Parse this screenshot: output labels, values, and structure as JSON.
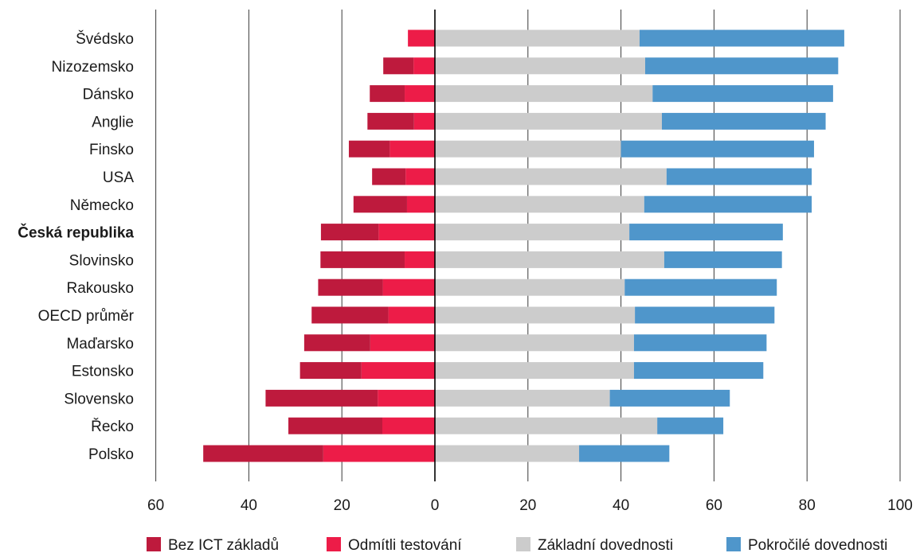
{
  "chart_data": {
    "type": "bar",
    "orientation": "horizontal",
    "stacked": true,
    "diverging": true,
    "categories": [
      "Švédsko",
      "Nizozemsko",
      "Dánsko",
      "Anglie",
      "Finsko",
      "USA",
      "Německo",
      "Česká republika",
      "Slovinsko",
      "Rakousko",
      "OECD průměr",
      "Maďarsko",
      "Estonsko",
      "Slovensko",
      "Řecko",
      "Polsko"
    ],
    "highlight_category": "Česká republika",
    "series": [
      {
        "name": "Bez ICT základů",
        "side": "left",
        "color": "#be1a3d",
        "values": [
          0,
          6.5,
          7.5,
          10,
          8.8,
          7.2,
          11.5,
          12.4,
          18.1,
          13.9,
          16.5,
          14.2,
          13.2,
          24.1,
          20.2,
          25.8
        ]
      },
      {
        "name": "Odmítli testování",
        "side": "left",
        "color": "#ed1c48",
        "values": [
          5.8,
          4.6,
          6.5,
          4.5,
          9.7,
          6.3,
          6.0,
          12.1,
          6.5,
          11.2,
          10.0,
          13.9,
          15.8,
          12.3,
          11.3,
          24.0
        ]
      },
      {
        "name": "Základní dovednosti",
        "side": "right",
        "color": "#cccccc",
        "values": [
          44.0,
          45.2,
          46.8,
          48.8,
          40.0,
          49.8,
          45.0,
          41.8,
          49.3,
          40.8,
          43.0,
          42.8,
          42.8,
          37.6,
          47.8,
          31.0
        ]
      },
      {
        "name": "Pokročilé dovednosti",
        "side": "right",
        "color": "#4f96cb",
        "values": [
          44.0,
          41.5,
          38.8,
          35.2,
          41.5,
          31.2,
          36.0,
          33.0,
          25.3,
          32.7,
          30.0,
          28.5,
          27.8,
          25.8,
          14.2,
          19.4
        ]
      }
    ],
    "x_ticks": [
      {
        "value": -60,
        "label": "60"
      },
      {
        "value": -40,
        "label": "40"
      },
      {
        "value": -20,
        "label": "20"
      },
      {
        "value": 0,
        "label": "0"
      },
      {
        "value": 20,
        "label": "20"
      },
      {
        "value": 40,
        "label": "40"
      },
      {
        "value": 60,
        "label": "60"
      },
      {
        "value": 80,
        "label": "80"
      },
      {
        "value": 100,
        "label": "100"
      }
    ],
    "xlim": [
      -60,
      100
    ],
    "grid": true,
    "legend_position": "bottom",
    "title": "",
    "xlabel": "",
    "ylabel": ""
  }
}
